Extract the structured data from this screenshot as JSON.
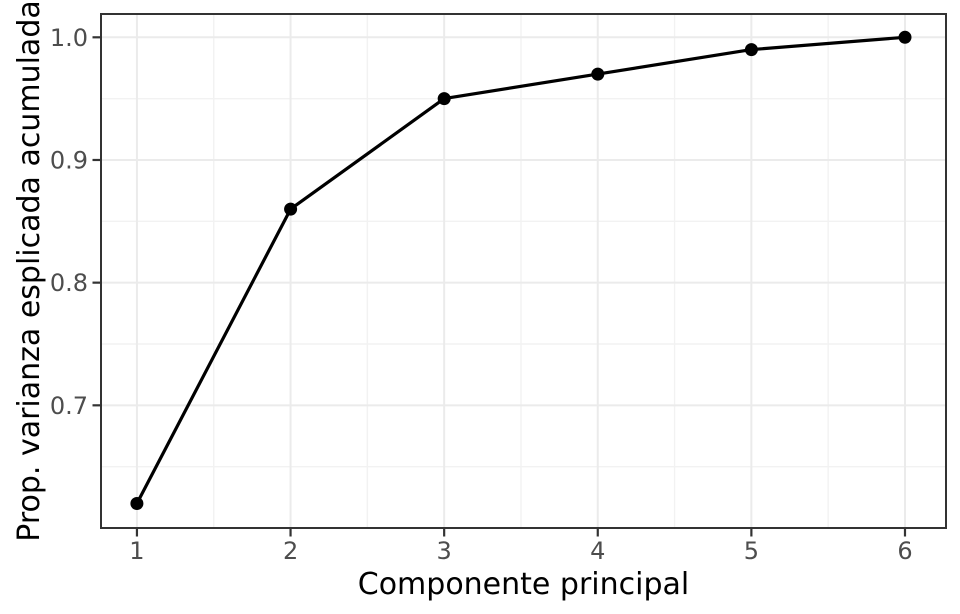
{
  "chart_data": {
    "type": "line",
    "title": "",
    "xlabel": "Componente principal",
    "ylabel": "Prop. varianza esplicada acumulada",
    "x": [
      1,
      2,
      3,
      4,
      5,
      6
    ],
    "values": [
      0.62,
      0.86,
      0.95,
      0.97,
      0.99,
      1.0
    ],
    "x_ticks": [
      1,
      2,
      3,
      4,
      5,
      6
    ],
    "x_tick_labels": [
      "1",
      "2",
      "3",
      "4",
      "5",
      "6"
    ],
    "y_ticks": [
      0.7,
      0.8,
      0.9,
      1.0
    ],
    "y_tick_labels": [
      "0.7",
      "0.8",
      "0.9",
      "1.0"
    ],
    "x_minor_ticks": [
      1.5,
      2.5,
      3.5,
      4.5,
      5.5
    ],
    "y_minor_ticks": [
      0.65,
      0.75,
      0.85,
      0.95
    ],
    "xlim": [
      0.766,
      6.267
    ],
    "ylim": [
      0.6,
      1.019
    ],
    "grid": true,
    "legend": "none",
    "marker": "filled-circle",
    "colors": {
      "line": "#000000",
      "point": "#000000",
      "grid_major": "#ebebeb",
      "grid_minor": "#f2f2f2",
      "panel_border": "#333333",
      "tick": "#333333",
      "tick_label": "#4d4d4d",
      "axis_title": "#000000",
      "background": "#ffffff"
    }
  }
}
